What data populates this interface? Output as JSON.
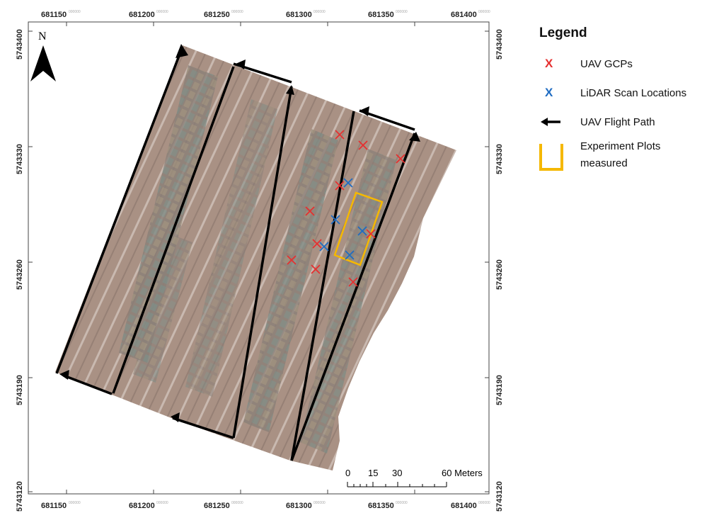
{
  "north_label": "N",
  "easting_ticks": [
    {
      "main": "681150",
      "sup": "000000"
    },
    {
      "main": "681200",
      "sup": "000000"
    },
    {
      "main": "681250",
      "sup": "000000"
    },
    {
      "main": "681300",
      "sup": "000000"
    },
    {
      "main": "681350",
      "sup": "000000"
    },
    {
      "main": "681400",
      "sup": "000000"
    }
  ],
  "northing_ticks": [
    {
      "main": "5743400",
      "sup": "000000"
    },
    {
      "main": "5743330",
      "sup": "000000"
    },
    {
      "main": "5743260",
      "sup": "000000"
    },
    {
      "main": "5743190",
      "sup": "000000"
    },
    {
      "main": "5743120",
      "sup": "000000"
    }
  ],
  "scale_bar": {
    "labels": [
      "0",
      "15",
      "30",
      "60 Meters"
    ]
  },
  "legend": {
    "title": "Legend",
    "items": [
      {
        "symbol": "X",
        "color": "#e53030",
        "label": "UAV GCPs"
      },
      {
        "symbol": "X",
        "color": "#1f6cc2",
        "label": "LiDAR Scan Locations"
      },
      {
        "symbol": "arrow",
        "color": "#000000",
        "label": "UAV Flight Path"
      },
      {
        "symbol": "square",
        "color": "#f5b800",
        "label_line1": "Experiment Plots",
        "label_line2": "measured"
      }
    ]
  },
  "markers": {
    "gcp_color": "#e53030",
    "lidar_color": "#1f6cc2",
    "plot_box_color": "#f5b800"
  }
}
